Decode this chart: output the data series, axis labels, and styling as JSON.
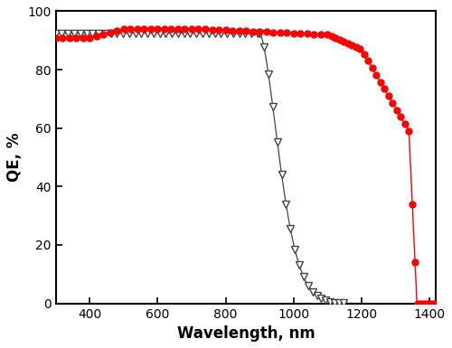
{
  "title": "",
  "xlabel": "Wavelength, nm",
  "ylabel": "QE, %",
  "xlim": [
    300,
    1420
  ],
  "ylim": [
    0,
    100
  ],
  "xticks": [
    400,
    600,
    800,
    1000,
    1200,
    1400
  ],
  "yticks": [
    0,
    20,
    40,
    60,
    80,
    100
  ],
  "bg_color": "#ffffff",
  "line_color_red": "#ff0000",
  "line_color_black": "#444444",
  "marker_color_red": "#ff0000",
  "marker_color_black": "#444444"
}
